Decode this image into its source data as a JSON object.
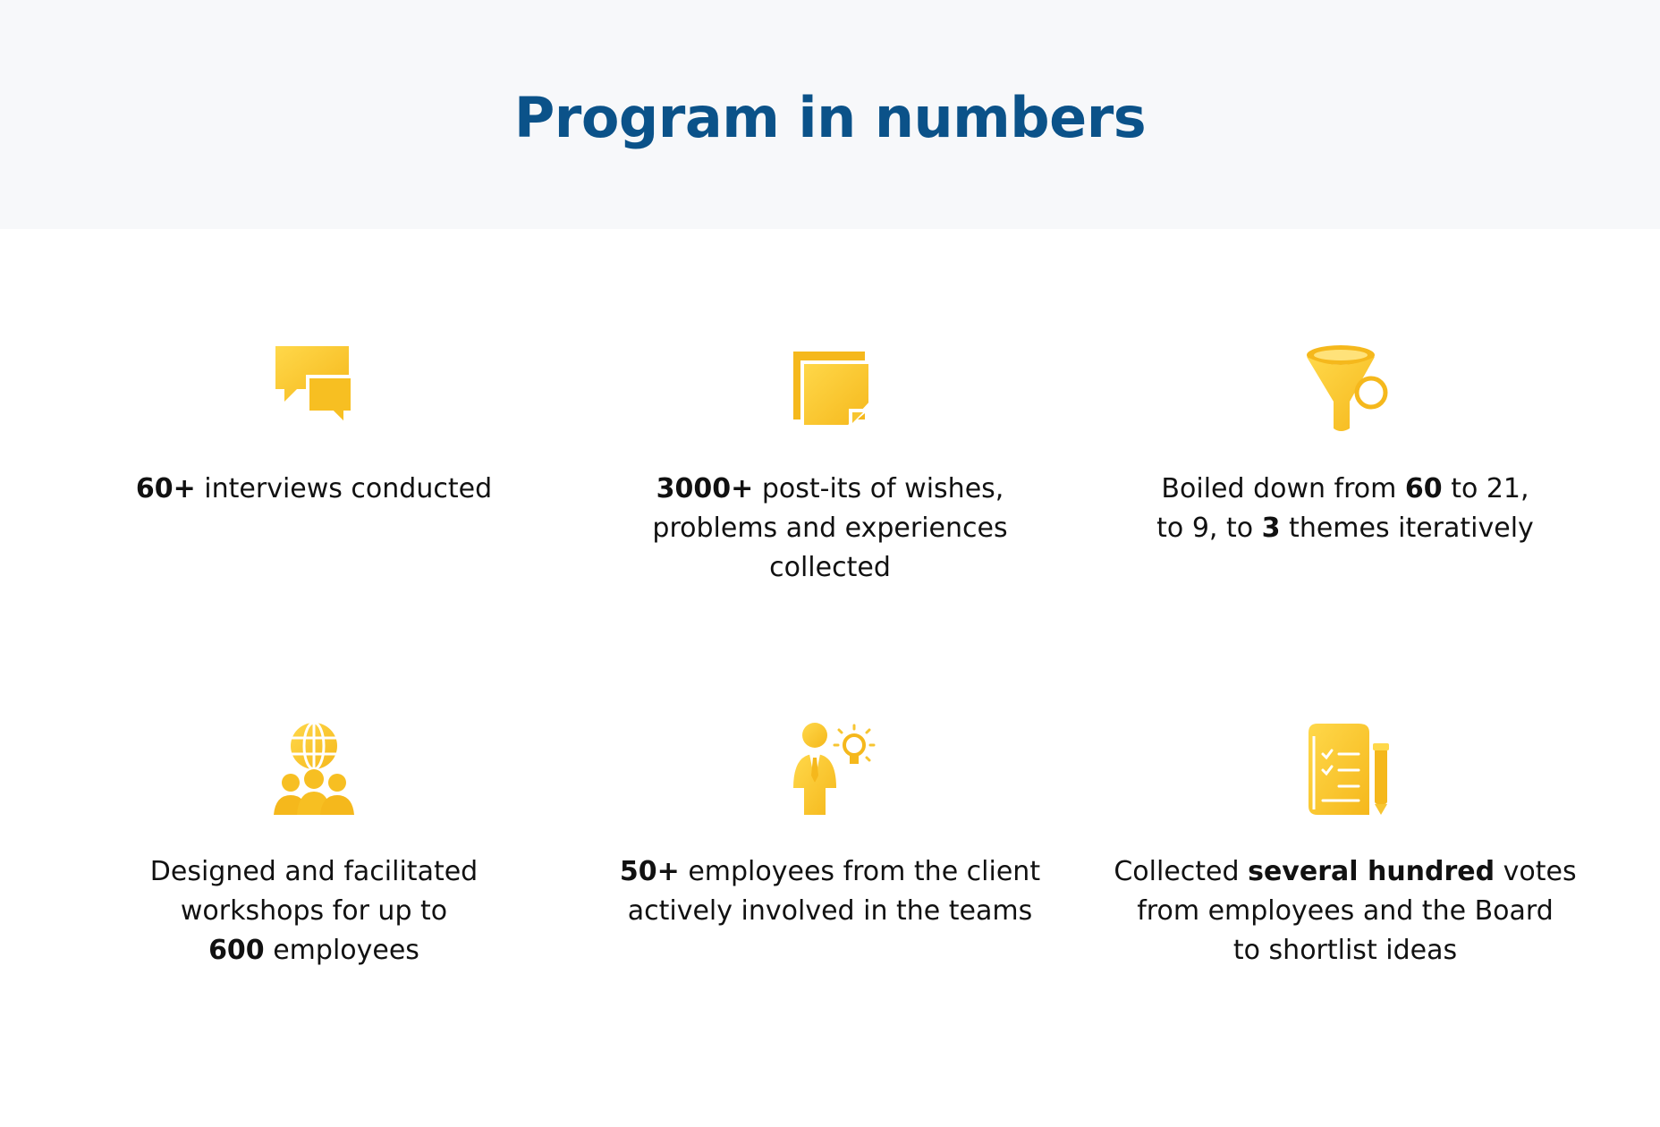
{
  "title": "Program in numbers",
  "colors": {
    "title": "#0b5289",
    "header_bg": "#f7f8fa",
    "icon_light": "#ffd23f",
    "icon_dark": "#f5b81c",
    "text": "#111111"
  },
  "items": [
    {
      "icon": "chat-bubbles-icon",
      "lines": [
        [
          {
            "t": "60+",
            "b": true
          },
          {
            "t": " interviews conducted",
            "b": false
          }
        ]
      ]
    },
    {
      "icon": "sticky-notes-icon",
      "lines": [
        [
          {
            "t": "3000+",
            "b": true
          },
          {
            "t": " post-its of wishes,",
            "b": false
          }
        ],
        [
          {
            "t": "problems and experiences",
            "b": false
          }
        ],
        [
          {
            "t": "collected",
            "b": false
          }
        ]
      ]
    },
    {
      "icon": "funnel-icon",
      "lines": [
        [
          {
            "t": "Boiled down from ",
            "b": false
          },
          {
            "t": "60",
            "b": true
          },
          {
            "t": " to 21,",
            "b": false
          }
        ],
        [
          {
            "t": "to 9, to ",
            "b": false
          },
          {
            "t": "3",
            "b": true
          },
          {
            "t": " themes iteratively",
            "b": false
          }
        ]
      ]
    },
    {
      "icon": "globe-group-icon",
      "lines": [
        [
          {
            "t": "Designed and facilitated",
            "b": false
          }
        ],
        [
          {
            "t": "workshops for up to",
            "b": false
          }
        ],
        [
          {
            "t": "600",
            "b": true
          },
          {
            "t": " employees",
            "b": false
          }
        ]
      ]
    },
    {
      "icon": "person-idea-icon",
      "lines": [
        [
          {
            "t": "50+",
            "b": true
          },
          {
            "t": " employees from the client",
            "b": false
          }
        ],
        [
          {
            "t": "actively involved in the teams",
            "b": false
          }
        ]
      ]
    },
    {
      "icon": "checklist-pen-icon",
      "lines": [
        [
          {
            "t": "Collected ",
            "b": false
          },
          {
            "t": "several hundred",
            "b": true
          },
          {
            "t": " votes",
            "b": false
          }
        ],
        [
          {
            "t": "from employees and the Board",
            "b": false
          }
        ],
        [
          {
            "t": "to shortlist ideas",
            "b": false
          }
        ]
      ]
    }
  ]
}
